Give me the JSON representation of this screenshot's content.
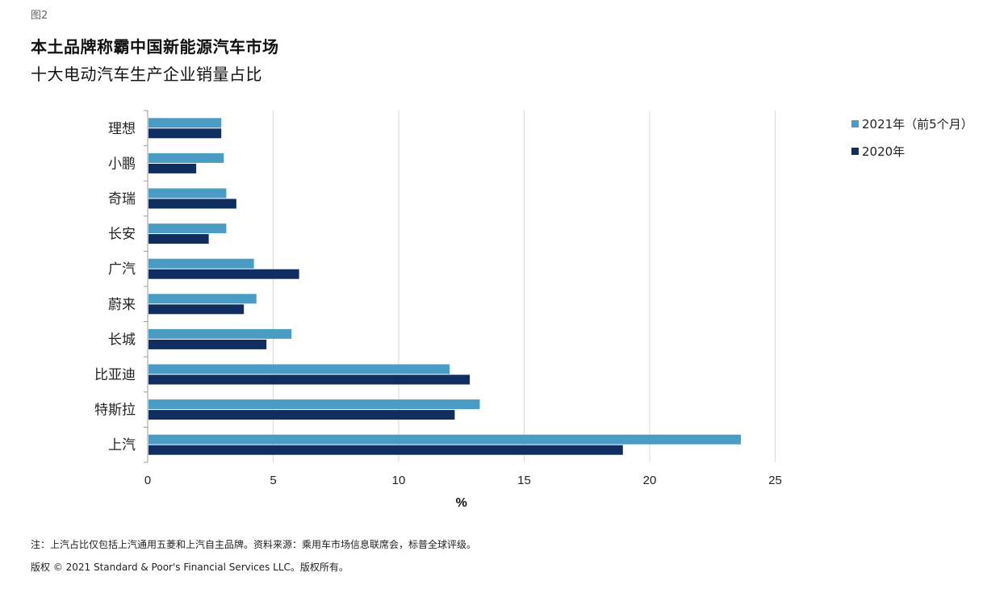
{
  "figure_label": "图2",
  "title": "本土品牌称霸中国新能源汽车市场",
  "subtitle": "十大电动汽车生产企业销量占比",
  "footnote": "注：上汽占比仅包括上汽通用五菱和上汽自主品牌。资料来源：乘用车市场信息联席会，标普全球评级。",
  "copyright": "版权 © 2021 Standard & Poor's Financial Services LLC。版权所有。",
  "chart_data": {
    "type": "bar",
    "orientation": "horizontal",
    "categories": [
      "理想",
      "小鹏",
      "奇瑞",
      "长安",
      "广汽",
      "蔚来",
      "长城",
      "比亚迪",
      "特斯拉",
      "上汽"
    ],
    "series": [
      {
        "name": "2021年（前5个月）",
        "color": "#4A9CC5",
        "values": [
          2.9,
          3.0,
          3.1,
          3.1,
          4.2,
          4.3,
          5.7,
          12.0,
          13.2,
          23.6
        ]
      },
      {
        "name": "2020年",
        "color": "#0F2D5E",
        "values": [
          2.9,
          1.9,
          3.5,
          2.4,
          6.0,
          3.8,
          4.7,
          12.8,
          12.2,
          18.9
        ]
      }
    ],
    "xlabel": "%",
    "xlim": [
      0,
      25
    ],
    "xticks": [
      0,
      5,
      10,
      15,
      20,
      25
    ],
    "grid": "vertical",
    "legend_position": "top-right"
  }
}
